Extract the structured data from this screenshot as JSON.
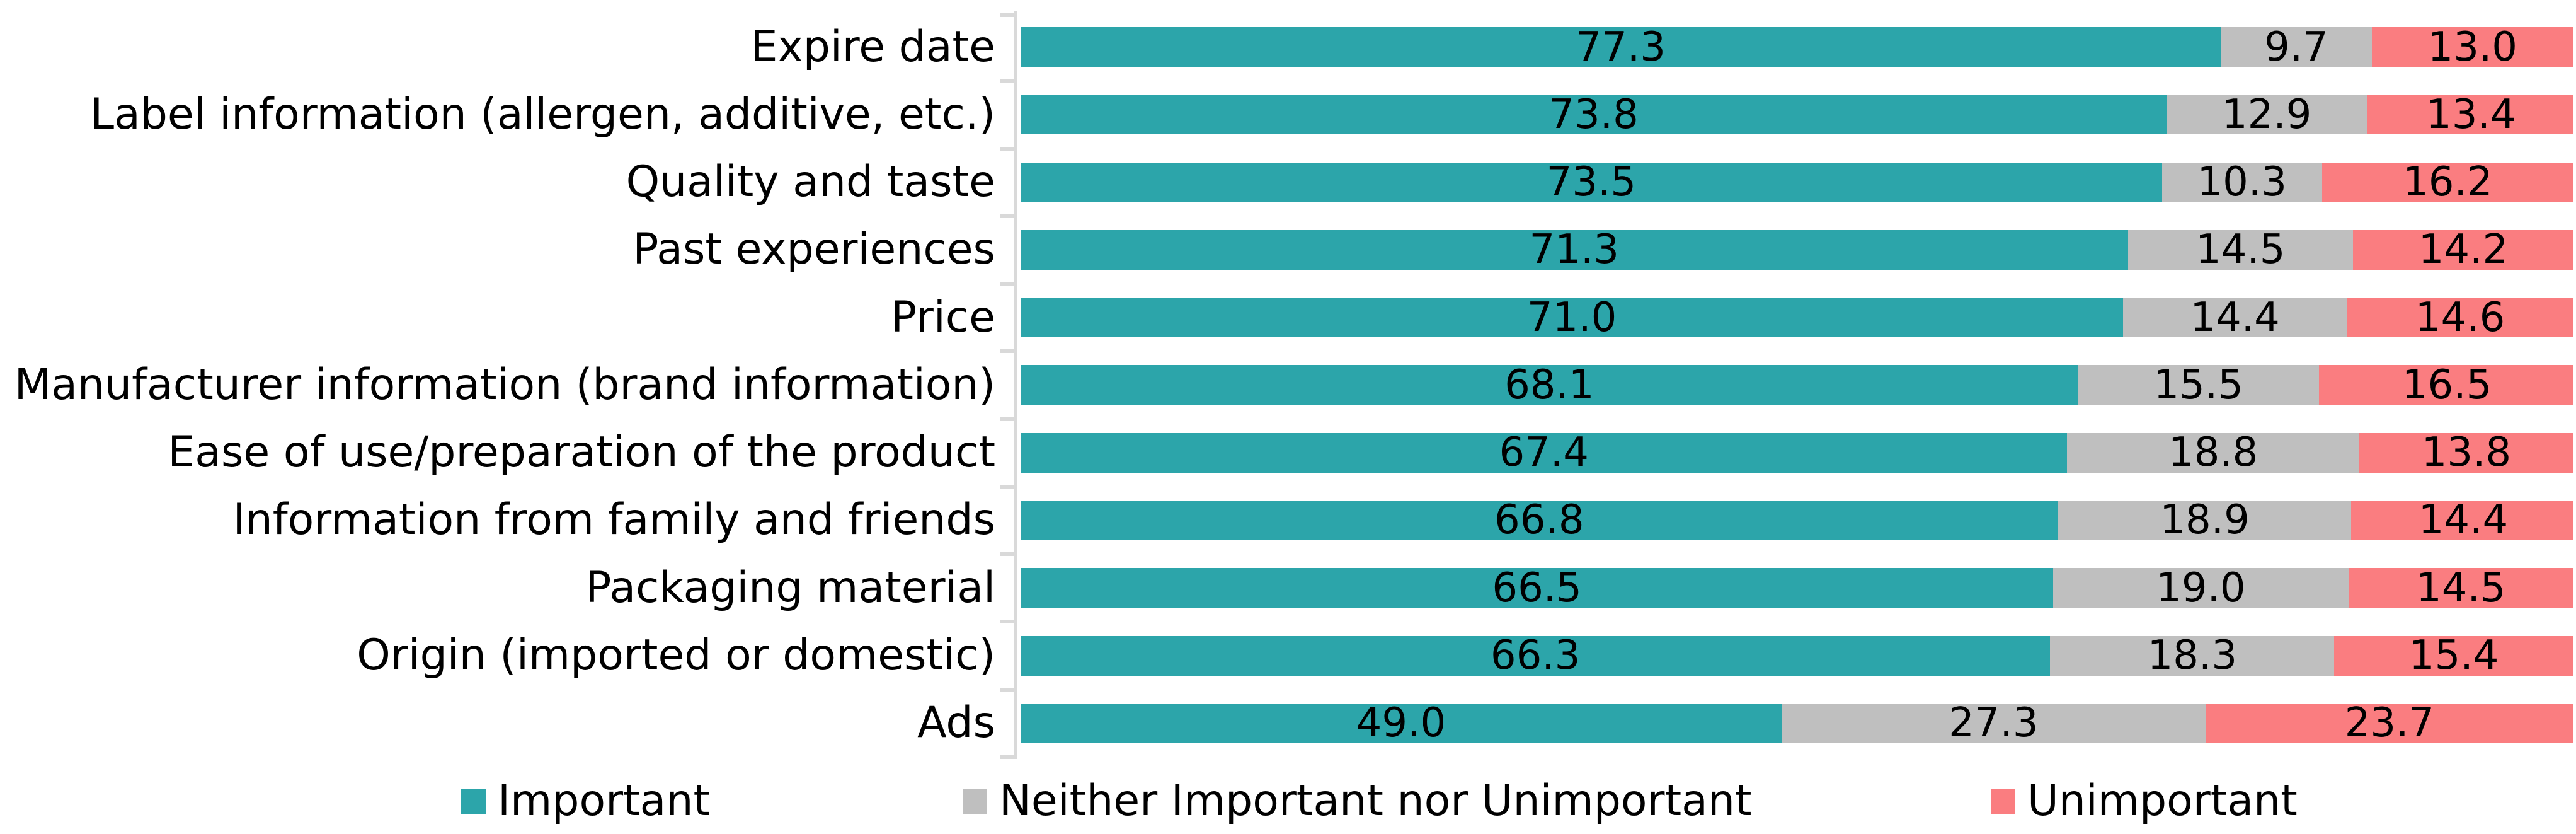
{
  "chart_data": {
    "type": "bar",
    "orientation": "horizontal",
    "stacked": true,
    "title": "",
    "xlabel": "",
    "ylabel": "",
    "xlim": [
      0,
      100
    ],
    "grid": false,
    "legend_position": "bottom",
    "value_label_format": "one-decimal, centered inside segment",
    "axis_color": "#d9d9d9",
    "categories": [
      "Expire date",
      "Label information (allergen, additive, etc.)",
      "Quality and taste",
      "Past experiences",
      "Price",
      "Manufacturer information (brand information)",
      "Ease of use/preparation of the product",
      "Information from family and friends",
      "Packaging material",
      "Origin (imported or domestic)",
      "Ads"
    ],
    "series": [
      {
        "name": "Important",
        "key": "important",
        "color": "#2ca5aa",
        "values": [
          77.3,
          73.8,
          73.5,
          71.3,
          71.0,
          68.1,
          67.4,
          66.8,
          66.5,
          66.3,
          49.0
        ]
      },
      {
        "name": "Neither Important nor Unimportant",
        "key": "neither",
        "color": "#bfbfbf",
        "values": [
          9.7,
          12.9,
          10.3,
          14.5,
          14.4,
          15.5,
          18.8,
          18.9,
          19.0,
          18.3,
          27.3
        ]
      },
      {
        "name": "Unimportant",
        "key": "unimportant",
        "color": "#fa7d80",
        "values": [
          13.0,
          13.4,
          16.2,
          14.2,
          14.6,
          16.5,
          13.8,
          14.4,
          14.5,
          15.4,
          23.7
        ]
      }
    ]
  }
}
